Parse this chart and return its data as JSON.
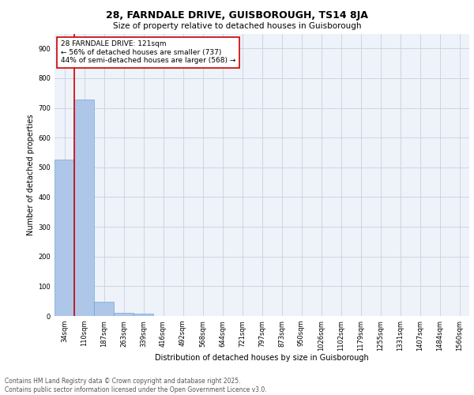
{
  "title_line1": "28, FARNDALE DRIVE, GUISBOROUGH, TS14 8JA",
  "title_line2": "Size of property relative to detached houses in Guisborough",
  "xlabel": "Distribution of detached houses by size in Guisborough",
  "ylabel": "Number of detached properties",
  "annotation_title": "28 FARNDALE DRIVE: 121sqm",
  "annotation_line1": "← 56% of detached houses are smaller (737)",
  "annotation_line2": "44% of semi-detached houses are larger (568) →",
  "categories": [
    "34sqm",
    "110sqm",
    "187sqm",
    "263sqm",
    "339sqm",
    "416sqm",
    "492sqm",
    "568sqm",
    "644sqm",
    "721sqm",
    "797sqm",
    "873sqm",
    "950sqm",
    "1026sqm",
    "1102sqm",
    "1179sqm",
    "1255sqm",
    "1331sqm",
    "1407sqm",
    "1484sqm",
    "1560sqm"
  ],
  "values": [
    527,
    727,
    47,
    11,
    7,
    0,
    0,
    0,
    0,
    0,
    0,
    0,
    0,
    0,
    0,
    0,
    0,
    0,
    0,
    0,
    0
  ],
  "bar_color": "#aec6e8",
  "bar_edge_color": "#5b9bd5",
  "vline_color": "#cc0000",
  "annotation_box_color": "#cc0000",
  "annotation_bg": "#ffffff",
  "ylim": [
    0,
    950
  ],
  "yticks": [
    0,
    100,
    200,
    300,
    400,
    500,
    600,
    700,
    800,
    900
  ],
  "background_color": "#eef2f9",
  "grid_color": "#c8d0e0",
  "footer_line1": "Contains HM Land Registry data © Crown copyright and database right 2025.",
  "footer_line2": "Contains public sector information licensed under the Open Government Licence v3.0.",
  "title_fontsize": 9,
  "subtitle_fontsize": 7.5,
  "axis_label_fontsize": 7,
  "tick_fontsize": 6,
  "annotation_fontsize": 6.5,
  "footer_fontsize": 5.5
}
